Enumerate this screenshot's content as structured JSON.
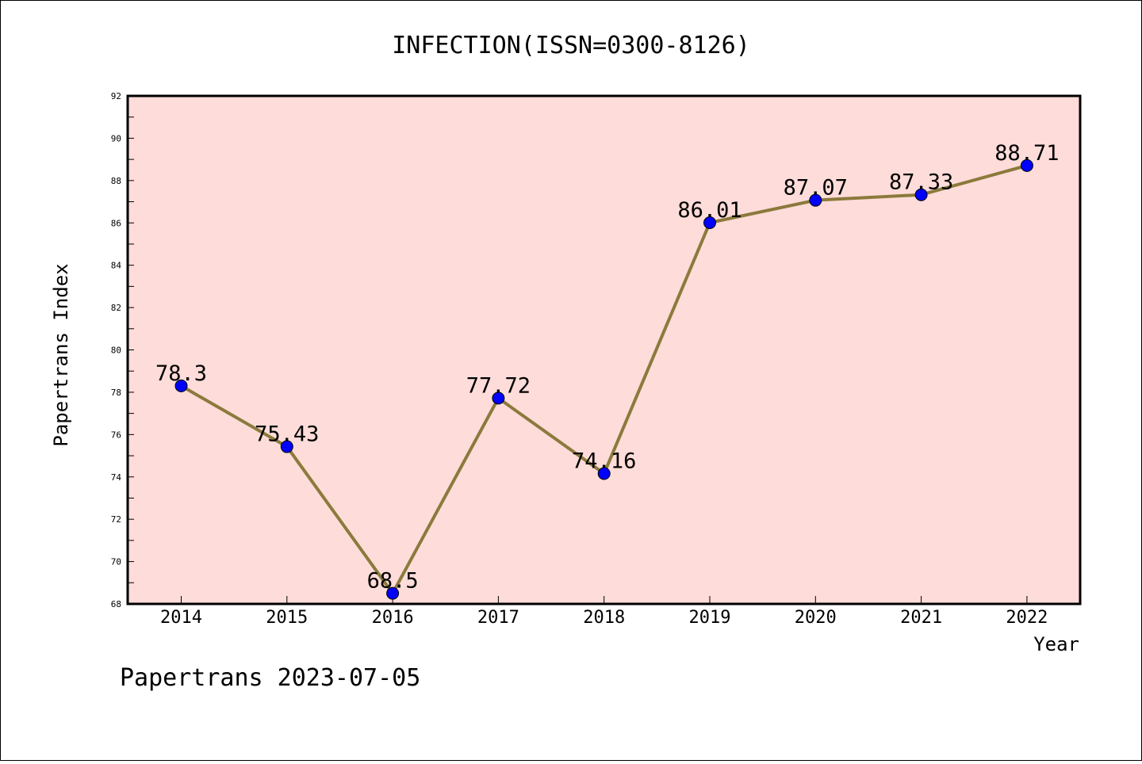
{
  "chart_data": {
    "type": "line",
    "title": "INFECTION(ISSN=0300-8126)",
    "xlabel": "Year",
    "ylabel": "Papertrans Index",
    "categories": [
      "2014",
      "2015",
      "2016",
      "2017",
      "2018",
      "2019",
      "2020",
      "2021",
      "2022"
    ],
    "values": [
      78.3,
      75.43,
      68.5,
      77.72,
      74.16,
      86.01,
      87.07,
      87.33,
      88.71
    ],
    "value_labels": [
      "78.3",
      "75.43",
      "68.5",
      "77.72",
      "74.16",
      "86.01",
      "87.07",
      "87.33",
      "88.71"
    ],
    "ylim": [
      68,
      92
    ],
    "yticks": [
      "68",
      "70",
      "72",
      "74",
      "76",
      "78",
      "80",
      "82",
      "84",
      "86",
      "88",
      "90",
      "92"
    ],
    "grid": false,
    "legend": "none",
    "colors": {
      "plot_background": "#fddcd9",
      "line": "#8b7a3c",
      "marker": "#0000ff",
      "axis": "#000000"
    }
  },
  "footer": "Papertrans 2023-07-05"
}
